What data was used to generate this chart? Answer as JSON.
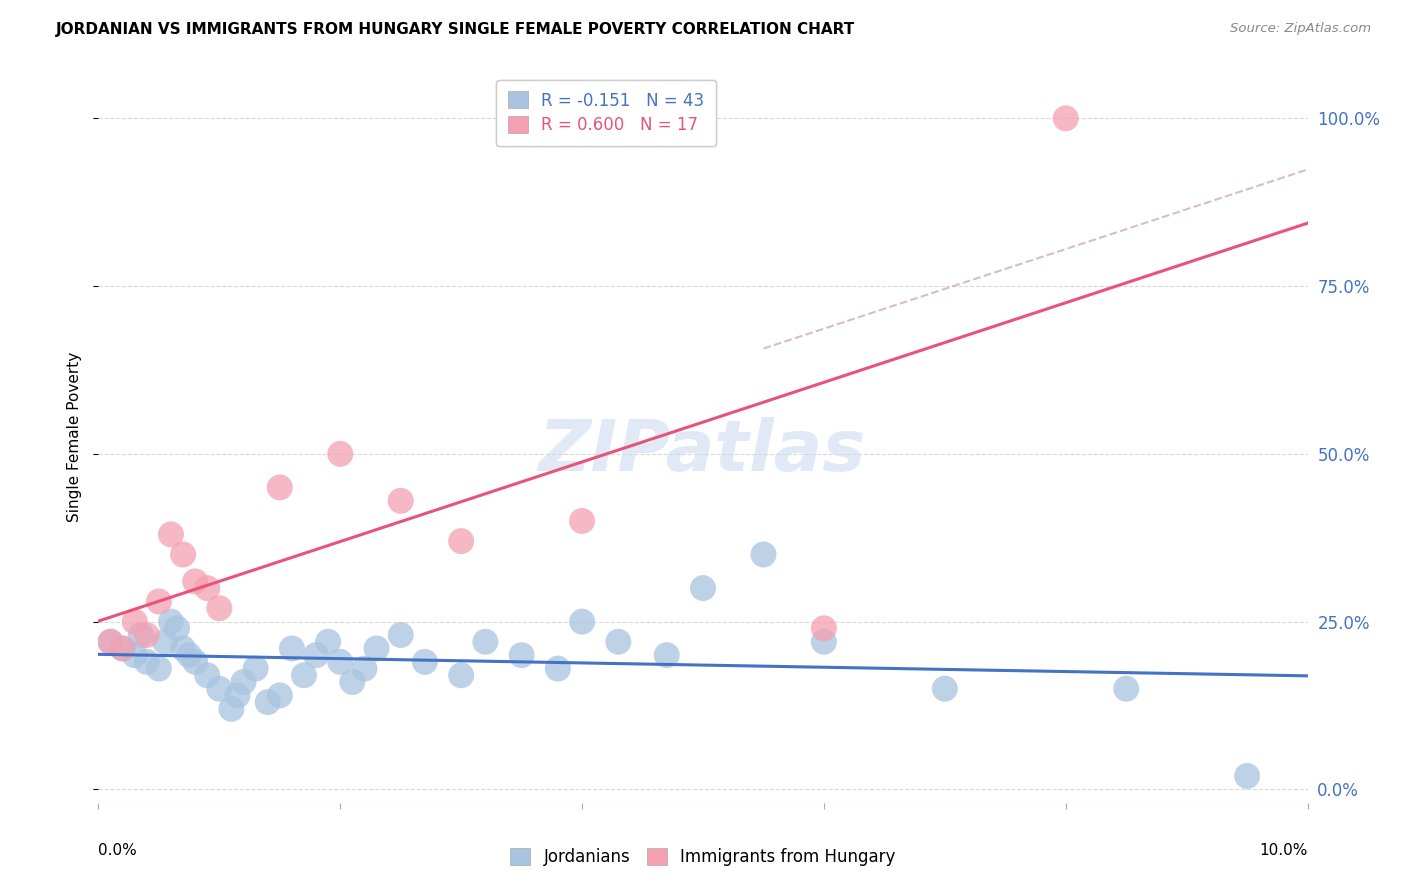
{
  "title": "JORDANIAN VS IMMIGRANTS FROM HUNGARY SINGLE FEMALE POVERTY CORRELATION CHART",
  "source": "Source: ZipAtlas.com",
  "ylabel": "Single Female Poverty",
  "yticks_labels": [
    "0.0%",
    "25.0%",
    "50.0%",
    "75.0%",
    "100.0%"
  ],
  "ytick_vals": [
    0,
    25,
    50,
    75,
    100
  ],
  "legend_line1": "R = -0.151   N = 43",
  "legend_line2": "R = 0.600   N = 17",
  "jordanians_color": "#a8c4e0",
  "hungary_color": "#f4a0b0",
  "trend_jordan_color": "#4472c4",
  "trend_hungary_color": "#e8537a",
  "trend_dashed_color": "#c8a0b0",
  "jordan_x": [
    0.1,
    0.2,
    0.3,
    0.35,
    0.4,
    0.5,
    0.55,
    0.6,
    0.65,
    0.7,
    0.75,
    0.8,
    0.9,
    1.0,
    1.1,
    1.15,
    1.2,
    1.3,
    1.4,
    1.5,
    1.6,
    1.7,
    1.8,
    1.9,
    2.0,
    2.1,
    2.2,
    2.3,
    2.5,
    2.7,
    3.0,
    3.2,
    3.5,
    3.8,
    4.0,
    4.3,
    4.7,
    5.0,
    5.5,
    6.0,
    7.0,
    8.5,
    9.5
  ],
  "jordan_y": [
    22,
    21,
    20,
    23,
    19,
    18,
    22,
    25,
    24,
    21,
    20,
    19,
    17,
    15,
    12,
    14,
    16,
    18,
    13,
    14,
    21,
    17,
    20,
    22,
    19,
    16,
    18,
    21,
    23,
    19,
    17,
    22,
    20,
    18,
    25,
    22,
    20,
    30,
    35,
    22,
    15,
    15,
    2
  ],
  "hungary_x": [
    0.1,
    0.2,
    0.3,
    0.4,
    0.5,
    0.6,
    0.7,
    0.8,
    0.9,
    1.0,
    1.5,
    2.0,
    2.5,
    3.0,
    4.0,
    6.0,
    8.0
  ],
  "hungary_y": [
    22,
    21,
    25,
    23,
    28,
    38,
    35,
    31,
    30,
    27,
    45,
    50,
    43,
    37,
    40,
    24,
    100
  ],
  "xlim": [
    0,
    10.0
  ],
  "ylim": [
    -2,
    107
  ],
  "background_color": "#ffffff",
  "grid_color": "#d8d8d8"
}
